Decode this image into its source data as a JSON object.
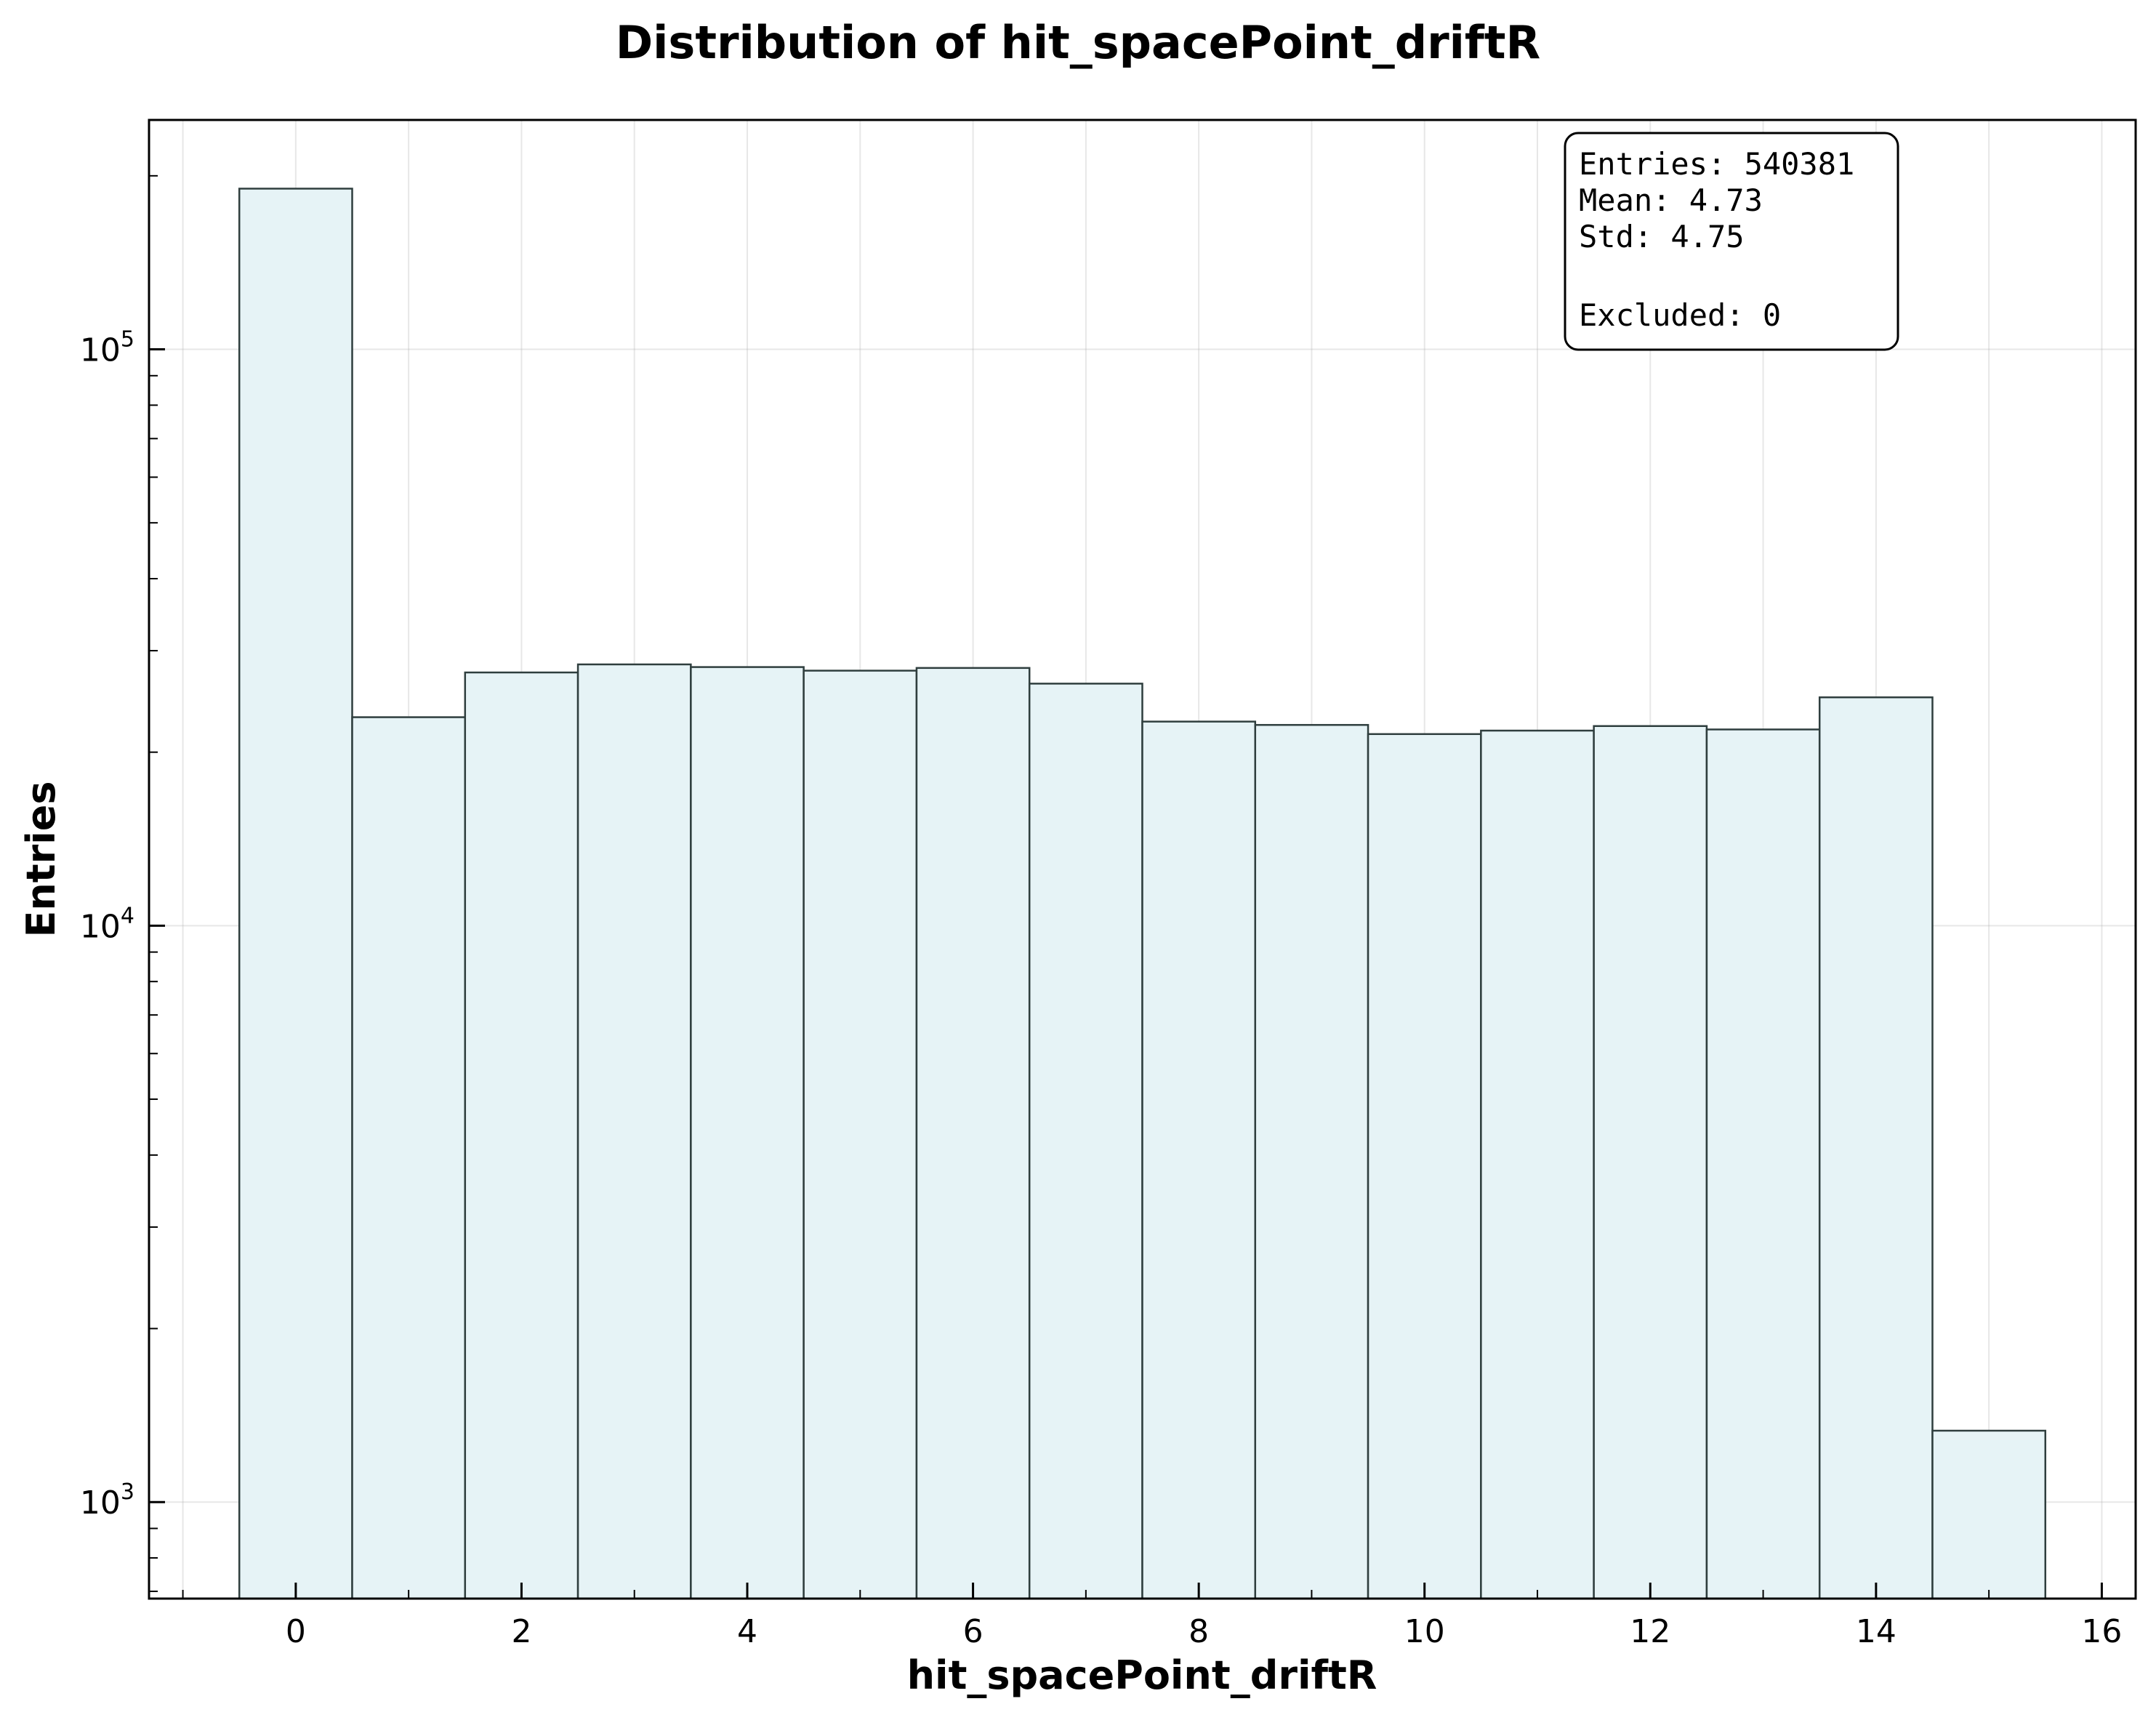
{
  "chart_data": {
    "type": "bar",
    "title": "Distribution of hit_spacePoint_driftR",
    "xlabel": "hit_spacePoint_driftR",
    "ylabel": "Entries",
    "y_scale": "log",
    "xlim": [
      -1.3,
      16.3
    ],
    "ylim": [
      680,
      250000
    ],
    "x_ticks": [
      0,
      2,
      4,
      6,
      8,
      10,
      12,
      14,
      16
    ],
    "y_ticks": [
      {
        "value": 1000,
        "base": "10",
        "exp": "3"
      },
      {
        "value": 10000,
        "base": "10",
        "exp": "4"
      },
      {
        "value": 100000,
        "base": "10",
        "exp": "5"
      }
    ],
    "grid": true,
    "bin_edges": [
      -0.5,
      0.5,
      1.5,
      2.5,
      3.5,
      4.5,
      5.5,
      6.5,
      7.5,
      8.5,
      9.5,
      10.5,
      11.5,
      12.5,
      13.5,
      14.5,
      15.5
    ],
    "values": [
      190000,
      23000,
      27500,
      28400,
      28100,
      27700,
      28000,
      26300,
      22600,
      22300,
      21500,
      21800,
      22200,
      21900,
      24900,
      1330
    ],
    "colors": {
      "bar_fill": "#e6f3f6",
      "bar_edge": "#2f3e3e"
    },
    "stats_box": {
      "placement": "top-right",
      "lines": [
        "Entries: 540381",
        "Mean: 4.73",
        "Std: 4.75",
        "",
        "Excluded: 0"
      ]
    }
  }
}
